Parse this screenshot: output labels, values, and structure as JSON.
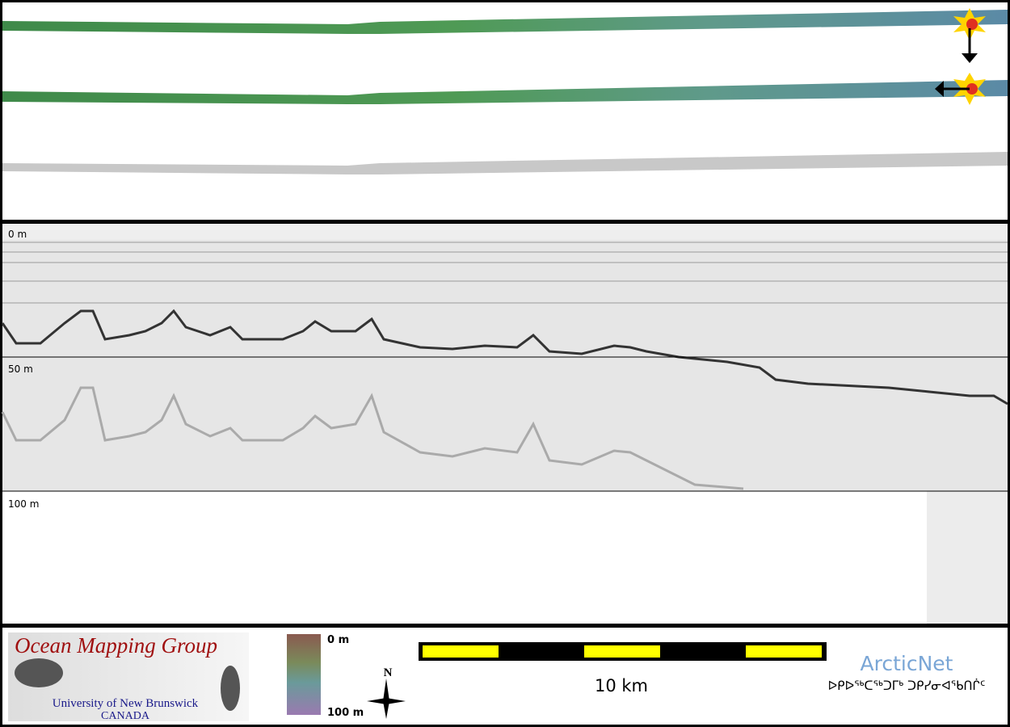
{
  "sonar": {
    "depth_labels": [
      "0 m",
      "50 m",
      "100 m"
    ]
  },
  "footer": {
    "logo_title": "Ocean Mapping Group",
    "logo_university": "University of New Brunswick",
    "logo_country": "CANADA",
    "colorbar_top": "0 m",
    "colorbar_bottom": "100 m",
    "north": "N",
    "scale_label": "10 km",
    "partner": "ArcticNet",
    "partner_syllabics": "ᐅᑭᐅᖅᑕᖅᑐᒥᒃ ᑐᑭᓯᓂᐊᖃᑎᒌᑦ"
  }
}
